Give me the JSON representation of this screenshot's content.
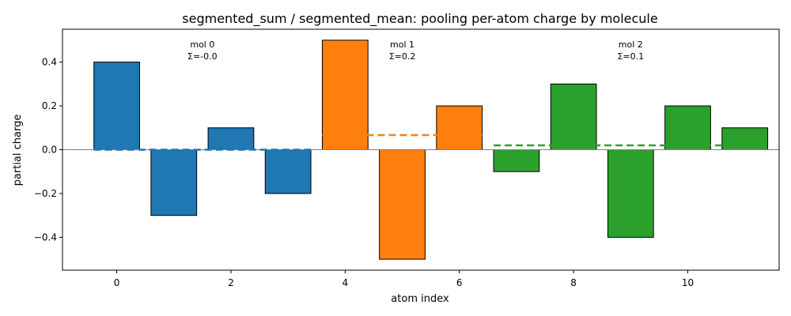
{
  "chart_data": {
    "type": "bar",
    "title": "segmented_sum / segmented_mean: pooling per-atom charge by molecule",
    "xlabel": "atom index",
    "ylabel": "partial charge",
    "xlim": [
      -0.95,
      11.6
    ],
    "ylim": [
      -0.55,
      0.55
    ],
    "x_ticks": [
      0,
      2,
      4,
      6,
      8,
      10
    ],
    "y_ticks": [
      -0.4,
      -0.2,
      0.0,
      0.2,
      0.4
    ],
    "y_tick_labels": [
      "−0.4",
      "−0.2",
      "0.0",
      "0.2",
      "0.4"
    ],
    "grid": false,
    "zero_line": true,
    "bar_width": 0.8,
    "x": [
      0,
      1,
      2,
      3,
      4,
      5,
      6,
      7,
      8,
      9,
      10,
      11
    ],
    "values": [
      0.4,
      -0.3,
      0.1,
      -0.2,
      0.5,
      -0.5,
      0.2,
      -0.1,
      0.3,
      -0.4,
      0.2,
      0.1
    ],
    "segments": [
      {
        "name": "mol 0",
        "atoms": [
          0,
          1,
          2,
          3
        ],
        "color": "#1f77b4",
        "mean": 0.0,
        "annotation": [
          "mol 0",
          "Σ=-0.0"
        ]
      },
      {
        "name": "mol 1",
        "atoms": [
          4,
          5,
          6
        ],
        "color": "#ff7f0e",
        "mean": 0.0667,
        "annotation": [
          "mol 1",
          "Σ=0.2"
        ]
      },
      {
        "name": "mol 2",
        "atoms": [
          7,
          8,
          9,
          10,
          11
        ],
        "color": "#2ca02c",
        "mean": 0.02,
        "annotation": [
          "mol 2",
          "Σ=0.1"
        ]
      }
    ]
  }
}
